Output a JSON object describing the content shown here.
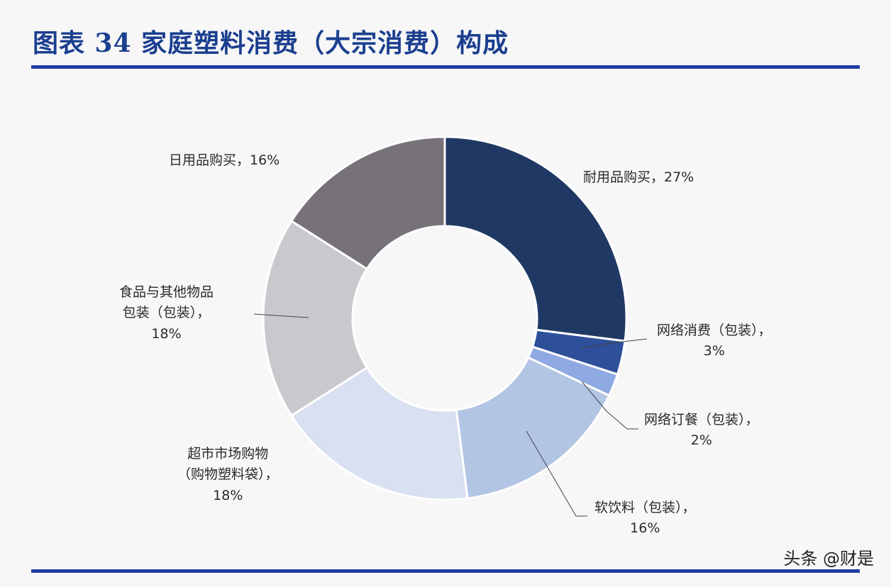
{
  "figure_title": "图表 34   家庭塑料消费（大宗消费）构成",
  "watermark": "头条 @财是",
  "chart_data": {
    "type": "pie",
    "donut": true,
    "title": "图表 34   家庭塑料消费（大宗消费）构成",
    "slices": [
      {
        "label": "耐用品购买",
        "value": 27,
        "pct_text": "27%",
        "color": "#1f3964"
      },
      {
        "label": "网络消费（包装）",
        "value": 3,
        "pct_text": "3%",
        "color": "#2e4f9a"
      },
      {
        "label": "网络订餐（包装）",
        "value": 2,
        "pct_text": "2%",
        "color": "#8fa9e2"
      },
      {
        "label": "软饮料（包装）",
        "value": 16,
        "pct_text": "16%",
        "color": "#b2c5e3"
      },
      {
        "label": "超市市场购物（购物塑料袋）",
        "value": 18,
        "pct_text": "18%",
        "color": "#d9e0f1"
      },
      {
        "label": "食品与其他物品包装（包装）",
        "value": 18,
        "pct_text": "18%",
        "color": "#c9c8cc"
      },
      {
        "label": "日用品购买",
        "value": 16,
        "pct_text": "16%",
        "color": "#77727a"
      }
    ]
  },
  "labels": {
    "durable": {
      "line1": "耐用品购买，27%"
    },
    "online_consume": {
      "line1": "网络消费（包装），",
      "line2": "3%"
    },
    "online_order": {
      "line1": "网络订餐（包装），",
      "line2": "2%"
    },
    "soft_drink": {
      "line1": "软饮料（包装），",
      "line2": "16%"
    },
    "supermarket": {
      "line1": "超市市场购物",
      "line2": "（购物塑料袋），",
      "line3": "18%"
    },
    "food_pack": {
      "line1": "食品与其他物品",
      "line2": "包装（包装），",
      "line3": "18%"
    },
    "daily": {
      "line1": "日用品购买，16%"
    }
  }
}
